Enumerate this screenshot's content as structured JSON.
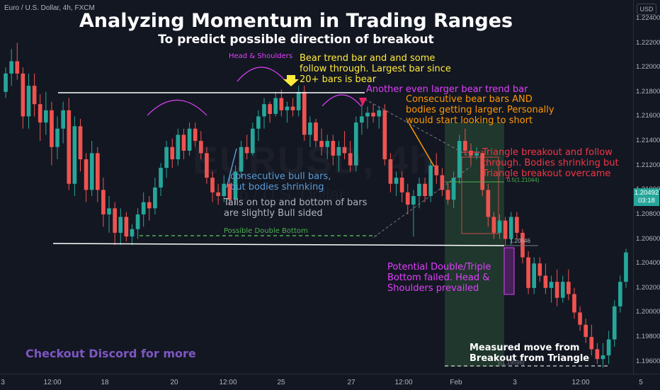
{
  "header": {
    "symbol": "Euro / U.S. Dollar, 4h, FXCM",
    "title": "Analyzing Momentum in Trading Ranges",
    "subtitle": "To predict possible direction of breakout",
    "currency": "USD"
  },
  "watermark": {
    "line1": "EURUSD, 4h",
    "line2": "Euro / U.S. Dollar"
  },
  "annotations": {
    "head_shoulders": "Head & Shoulders",
    "bear_trend_bar": "Bear trend bar and and some\nfollow through. Largest bar since\n20+ bars is bear",
    "larger_bear_bar": "Another even larger bear trend bar",
    "consecutive_bear": "Consecutive bear bars AND\nbodies getting larger. Personally\nwould start looking to short",
    "triangle_breakout": "Triangle breakout and follow\nthrough. Bodies shrinking but\nTriangle breakout overcame",
    "bull_bars": "consecutive bull bars,\nbut bodies shrinking",
    "tails": "Tails on top and bottom of bars\nare slightly Bull sided",
    "double_bottom": "Possible Double Bottom",
    "failed_bottom": "Potential Double/Triple\nBottom failed. Head &\nShoulders prevailed",
    "measured_move": "Measured move from\nBreakout from Triangle",
    "discord": "Checkout Discord for more",
    "fib_05": "0.5(1.21044)",
    "fib_price": "1.20546",
    "fib_1": "1(1.19596)"
  },
  "price_axis": {
    "ticks": [
      "1.22400",
      "1.22200",
      "1.22000",
      "1.21800",
      "1.21600",
      "1.21400",
      "1.21200",
      "1.21000",
      "1.20800",
      "1.20600",
      "1.20400",
      "1.20200",
      "1.20000",
      "1.19800",
      "1.19600"
    ],
    "current_label": "1.20492",
    "current_time": "03:18"
  },
  "time_axis": {
    "ticks": [
      "3",
      "12:00",
      "18",
      "20",
      "12:00",
      "25",
      "27",
      "12:00",
      "Feb",
      "3",
      "12:00",
      "5"
    ]
  },
  "colors": {
    "bull": "#26a69a",
    "bear": "#ef5350",
    "background": "#131722",
    "yellow": "#ffeb3b",
    "magenta": "#e040fb",
    "orange": "#ff9800",
    "red_text": "#f23645",
    "blue_text": "#5b9bd5",
    "green_dash": "#4caf50",
    "discord": "#7e57c2"
  },
  "chart_data": {
    "type": "candlestick",
    "instrument": "EUR/USD",
    "timeframe": "4h",
    "ylim": [
      1.195,
      1.2255
    ],
    "candles": [
      {
        "o": 1.218,
        "h": 1.22,
        "l": 1.2175,
        "c": 1.2195
      },
      {
        "o": 1.2195,
        "h": 1.2215,
        "l": 1.2185,
        "c": 1.2205
      },
      {
        "o": 1.2205,
        "h": 1.222,
        "l": 1.219,
        "c": 1.2195
      },
      {
        "o": 1.2195,
        "h": 1.22,
        "l": 1.215,
        "c": 1.216
      },
      {
        "o": 1.216,
        "h": 1.2195,
        "l": 1.215,
        "c": 1.2185
      },
      {
        "o": 1.2185,
        "h": 1.2195,
        "l": 1.216,
        "c": 1.217
      },
      {
        "o": 1.217,
        "h": 1.2178,
        "l": 1.214,
        "c": 1.2155
      },
      {
        "o": 1.2155,
        "h": 1.218,
        "l": 1.2145,
        "c": 1.2165
      },
      {
        "o": 1.2165,
        "h": 1.2172,
        "l": 1.212,
        "c": 1.2135
      },
      {
        "o": 1.2135,
        "h": 1.216,
        "l": 1.2125,
        "c": 1.215
      },
      {
        "o": 1.215,
        "h": 1.2172,
        "l": 1.2138,
        "c": 1.2165
      },
      {
        "o": 1.2165,
        "h": 1.2175,
        "l": 1.21,
        "c": 1.2105
      },
      {
        "o": 1.2105,
        "h": 1.216,
        "l": 1.2095,
        "c": 1.2152
      },
      {
        "o": 1.2152,
        "h": 1.2158,
        "l": 1.2115,
        "c": 1.2125
      },
      {
        "o": 1.2125,
        "h": 1.213,
        "l": 1.209,
        "c": 1.21
      },
      {
        "o": 1.21,
        "h": 1.214,
        "l": 1.2095,
        "c": 1.213
      },
      {
        "o": 1.213,
        "h": 1.2135,
        "l": 1.209,
        "c": 1.21
      },
      {
        "o": 1.21,
        "h": 1.211,
        "l": 1.207,
        "c": 1.208
      },
      {
        "o": 1.208,
        "h": 1.2095,
        "l": 1.2065,
        "c": 1.2085
      },
      {
        "o": 1.2085,
        "h": 1.209,
        "l": 1.2055,
        "c": 1.2065
      },
      {
        "o": 1.2065,
        "h": 1.2085,
        "l": 1.2055,
        "c": 1.2078
      },
      {
        "o": 1.2078,
        "h": 1.2082,
        "l": 1.2058,
        "c": 1.2062
      },
      {
        "o": 1.2062,
        "h": 1.2072,
        "l": 1.2055,
        "c": 1.2068
      },
      {
        "o": 1.2068,
        "h": 1.2085,
        "l": 1.206,
        "c": 1.208
      },
      {
        "o": 1.208,
        "h": 1.2098,
        "l": 1.207,
        "c": 1.209
      },
      {
        "o": 1.209,
        "h": 1.2095,
        "l": 1.2075,
        "c": 1.2085
      },
      {
        "o": 1.2085,
        "h": 1.211,
        "l": 1.208,
        "c": 1.2102
      },
      {
        "o": 1.2102,
        "h": 1.2122,
        "l": 1.2095,
        "c": 1.2118
      },
      {
        "o": 1.2118,
        "h": 1.214,
        "l": 1.211,
        "c": 1.2135
      },
      {
        "o": 1.2135,
        "h": 1.2142,
        "l": 1.2118,
        "c": 1.2125
      },
      {
        "o": 1.2125,
        "h": 1.215,
        "l": 1.212,
        "c": 1.2145
      },
      {
        "o": 1.2145,
        "h": 1.215,
        "l": 1.2125,
        "c": 1.2132
      },
      {
        "o": 1.2132,
        "h": 1.2155,
        "l": 1.2128,
        "c": 1.215
      },
      {
        "o": 1.215,
        "h": 1.2155,
        "l": 1.2135,
        "c": 1.214
      },
      {
        "o": 1.214,
        "h": 1.2148,
        "l": 1.2125,
        "c": 1.213
      },
      {
        "o": 1.213,
        "h": 1.2135,
        "l": 1.2105,
        "c": 1.211
      },
      {
        "o": 1.211,
        "h": 1.2115,
        "l": 1.209,
        "c": 1.2098
      },
      {
        "o": 1.2098,
        "h": 1.2105,
        "l": 1.2088,
        "c": 1.2095
      },
      {
        "o": 1.2095,
        "h": 1.2112,
        "l": 1.209,
        "c": 1.2105
      },
      {
        "o": 1.2105,
        "h": 1.211,
        "l": 1.2088,
        "c": 1.2092
      },
      {
        "o": 1.2092,
        "h": 1.212,
        "l": 1.2088,
        "c": 1.2115
      },
      {
        "o": 1.2115,
        "h": 1.214,
        "l": 1.211,
        "c": 1.2135
      },
      {
        "o": 1.2135,
        "h": 1.2145,
        "l": 1.2125,
        "c": 1.213
      },
      {
        "o": 1.213,
        "h": 1.2155,
        "l": 1.2128,
        "c": 1.215
      },
      {
        "o": 1.215,
        "h": 1.2165,
        "l": 1.214,
        "c": 1.216
      },
      {
        "o": 1.216,
        "h": 1.2175,
        "l": 1.215,
        "c": 1.217
      },
      {
        "o": 1.217,
        "h": 1.2172,
        "l": 1.2155,
        "c": 1.2162
      },
      {
        "o": 1.2162,
        "h": 1.218,
        "l": 1.216,
        "c": 1.2175
      },
      {
        "o": 1.2175,
        "h": 1.2182,
        "l": 1.216,
        "c": 1.2165
      },
      {
        "o": 1.2165,
        "h": 1.2172,
        "l": 1.2155,
        "c": 1.2168
      },
      {
        "o": 1.2168,
        "h": 1.2175,
        "l": 1.216,
        "c": 1.2165
      },
      {
        "o": 1.2165,
        "h": 1.2185,
        "l": 1.216,
        "c": 1.218
      },
      {
        "o": 1.218,
        "h": 1.2185,
        "l": 1.214,
        "c": 1.2145
      },
      {
        "o": 1.2145,
        "h": 1.216,
        "l": 1.2135,
        "c": 1.2155
      },
      {
        "o": 1.2155,
        "h": 1.2158,
        "l": 1.2135,
        "c": 1.214
      },
      {
        "o": 1.214,
        "h": 1.215,
        "l": 1.2128,
        "c": 1.2135
      },
      {
        "o": 1.2135,
        "h": 1.2145,
        "l": 1.2125,
        "c": 1.214
      },
      {
        "o": 1.214,
        "h": 1.2145,
        "l": 1.212,
        "c": 1.2128
      },
      {
        "o": 1.2128,
        "h": 1.214,
        "l": 1.2115,
        "c": 1.2135
      },
      {
        "o": 1.2135,
        "h": 1.2148,
        "l": 1.2125,
        "c": 1.213
      },
      {
        "o": 1.213,
        "h": 1.214,
        "l": 1.2115,
        "c": 1.212
      },
      {
        "o": 1.212,
        "h": 1.216,
        "l": 1.2115,
        "c": 1.2155
      },
      {
        "o": 1.2155,
        "h": 1.217,
        "l": 1.2145,
        "c": 1.216
      },
      {
        "o": 1.216,
        "h": 1.2168,
        "l": 1.215,
        "c": 1.2163
      },
      {
        "o": 1.2163,
        "h": 1.217,
        "l": 1.2155,
        "c": 1.216
      },
      {
        "o": 1.216,
        "h": 1.2168,
        "l": 1.215,
        "c": 1.2165
      },
      {
        "o": 1.2165,
        "h": 1.217,
        "l": 1.212,
        "c": 1.2125
      },
      {
        "o": 1.2125,
        "h": 1.213,
        "l": 1.2098,
        "c": 1.2105
      },
      {
        "o": 1.2105,
        "h": 1.2115,
        "l": 1.2095,
        "c": 1.211
      },
      {
        "o": 1.211,
        "h": 1.2115,
        "l": 1.209,
        "c": 1.2098
      },
      {
        "o": 1.2098,
        "h": 1.2105,
        "l": 1.208,
        "c": 1.2088
      },
      {
        "o": 1.2088,
        "h": 1.21,
        "l": 1.2062,
        "c": 1.2095
      },
      {
        "o": 1.2095,
        "h": 1.211,
        "l": 1.2085,
        "c": 1.2105
      },
      {
        "o": 1.2105,
        "h": 1.211,
        "l": 1.209,
        "c": 1.2095
      },
      {
        "o": 1.2095,
        "h": 1.2125,
        "l": 1.209,
        "c": 1.212
      },
      {
        "o": 1.212,
        "h": 1.213,
        "l": 1.2105,
        "c": 1.2112
      },
      {
        "o": 1.2112,
        "h": 1.2118,
        "l": 1.2095,
        "c": 1.21
      },
      {
        "o": 1.21,
        "h": 1.2105,
        "l": 1.2088,
        "c": 1.2092
      },
      {
        "o": 1.2092,
        "h": 1.2115,
        "l": 1.2085,
        "c": 1.211
      },
      {
        "o": 1.211,
        "h": 1.2145,
        "l": 1.2105,
        "c": 1.214
      },
      {
        "o": 1.214,
        "h": 1.215,
        "l": 1.2128,
        "c": 1.2132
      },
      {
        "o": 1.2132,
        "h": 1.2138,
        "l": 1.212,
        "c": 1.2128
      },
      {
        "o": 1.2128,
        "h": 1.2135,
        "l": 1.2125,
        "c": 1.213
      },
      {
        "o": 1.213,
        "h": 1.2132,
        "l": 1.2095,
        "c": 1.21
      },
      {
        "o": 1.21,
        "h": 1.2105,
        "l": 1.207,
        "c": 1.2078
      },
      {
        "o": 1.2078,
        "h": 1.2082,
        "l": 1.206,
        "c": 1.2065
      },
      {
        "o": 1.2065,
        "h": 1.208,
        "l": 1.206,
        "c": 1.2075
      },
      {
        "o": 1.2075,
        "h": 1.2078,
        "l": 1.2055,
        "c": 1.206
      },
      {
        "o": 1.206,
        "h": 1.2082,
        "l": 1.2055,
        "c": 1.2078
      },
      {
        "o": 1.2078,
        "h": 1.2082,
        "l": 1.206,
        "c": 1.2065
      },
      {
        "o": 1.2065,
        "h": 1.2068,
        "l": 1.204,
        "c": 1.2045
      },
      {
        "o": 1.2045,
        "h": 1.205,
        "l": 1.2015,
        "c": 1.202
      },
      {
        "o": 1.202,
        "h": 1.2045,
        "l": 1.2015,
        "c": 1.204
      },
      {
        "o": 1.204,
        "h": 1.2045,
        "l": 1.2025,
        "c": 1.203
      },
      {
        "o": 1.203,
        "h": 1.204,
        "l": 1.2015,
        "c": 1.202
      },
      {
        "o": 1.202,
        "h": 1.203,
        "l": 1.2008,
        "c": 1.2025
      },
      {
        "o": 1.2025,
        "h": 1.2035,
        "l": 1.2005,
        "c": 1.2012
      },
      {
        "o": 1.2012,
        "h": 1.203,
        "l": 1.2008,
        "c": 1.2025
      },
      {
        "o": 1.2025,
        "h": 1.2035,
        "l": 1.201,
        "c": 1.2015
      },
      {
        "o": 1.2015,
        "h": 1.202,
        "l": 1.1995,
        "c": 1.2
      },
      {
        "o": 1.2,
        "h": 1.2005,
        "l": 1.1985,
        "c": 1.199
      },
      {
        "o": 1.199,
        "h": 1.1995,
        "l": 1.1975,
        "c": 1.198
      },
      {
        "o": 1.198,
        "h": 1.199,
        "l": 1.1965,
        "c": 1.197
      },
      {
        "o": 1.197,
        "h": 1.1975,
        "l": 1.1958,
        "c": 1.1962
      },
      {
        "o": 1.1962,
        "h": 1.1975,
        "l": 1.1955,
        "c": 1.1965
      },
      {
        "o": 1.1965,
        "h": 1.1985,
        "l": 1.1958,
        "c": 1.1978
      },
      {
        "o": 1.1978,
        "h": 1.201,
        "l": 1.1972,
        "c": 1.2005
      },
      {
        "o": 1.2005,
        "h": 1.203,
        "l": 1.2,
        "c": 1.2025
      },
      {
        "o": 1.2025,
        "h": 1.2052,
        "l": 1.202,
        "c": 1.2049
      }
    ]
  }
}
